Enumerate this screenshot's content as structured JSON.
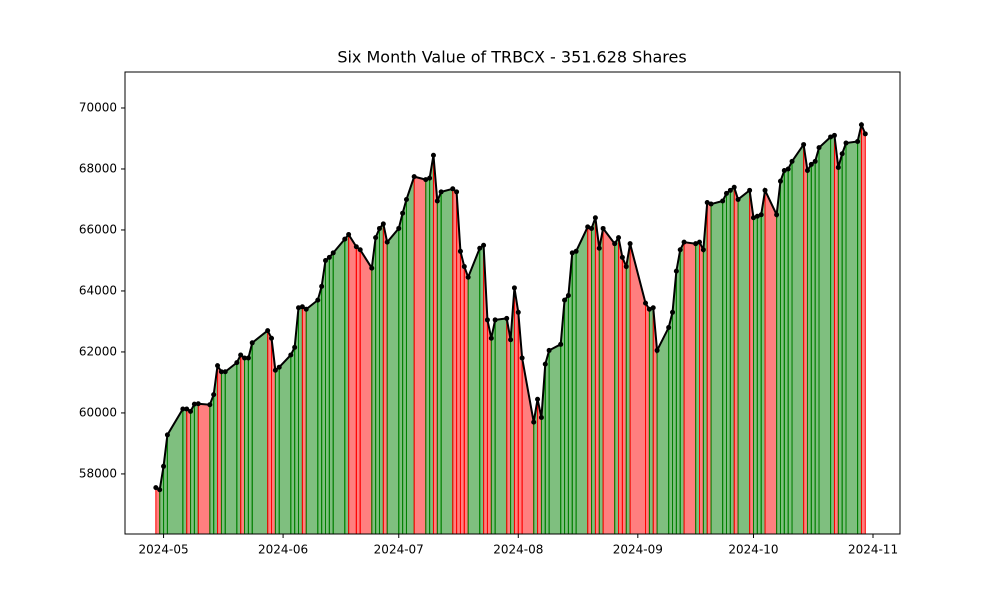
{
  "chart_data": {
    "type": "line",
    "title": "Six Month Value of TRBCX - 351.628 Shares",
    "x": [
      "2024-04-29",
      "2024-04-30",
      "2024-05-01",
      "2024-05-02",
      "2024-05-06",
      "2024-05-07",
      "2024-05-08",
      "2024-05-09",
      "2024-05-10",
      "2024-05-13",
      "2024-05-14",
      "2024-05-15",
      "2024-05-16",
      "2024-05-17",
      "2024-05-20",
      "2024-05-21",
      "2024-05-22",
      "2024-05-23",
      "2024-05-24",
      "2024-05-28",
      "2024-05-29",
      "2024-05-30",
      "2024-05-31",
      "2024-06-03",
      "2024-06-04",
      "2024-06-05",
      "2024-06-06",
      "2024-06-07",
      "2024-06-10",
      "2024-06-11",
      "2024-06-12",
      "2024-06-13",
      "2024-06-14",
      "2024-06-17",
      "2024-06-18",
      "2024-06-20",
      "2024-06-21",
      "2024-06-24",
      "2024-06-25",
      "2024-06-26",
      "2024-06-27",
      "2024-06-28",
      "2024-07-01",
      "2024-07-02",
      "2024-07-03",
      "2024-07-05",
      "2024-07-08",
      "2024-07-09",
      "2024-07-10",
      "2024-07-11",
      "2024-07-12",
      "2024-07-15",
      "2024-07-16",
      "2024-07-17",
      "2024-07-18",
      "2024-07-19",
      "2024-07-22",
      "2024-07-23",
      "2024-07-24",
      "2024-07-25",
      "2024-07-26",
      "2024-07-29",
      "2024-07-30",
      "2024-07-31",
      "2024-08-01",
      "2024-08-02",
      "2024-08-05",
      "2024-08-06",
      "2024-08-07",
      "2024-08-08",
      "2024-08-09",
      "2024-08-12",
      "2024-08-13",
      "2024-08-14",
      "2024-08-15",
      "2024-08-16",
      "2024-08-19",
      "2024-08-20",
      "2024-08-21",
      "2024-08-22",
      "2024-08-23",
      "2024-08-26",
      "2024-08-27",
      "2024-08-28",
      "2024-08-29",
      "2024-08-30",
      "2024-09-03",
      "2024-09-04",
      "2024-09-05",
      "2024-09-06",
      "2024-09-09",
      "2024-09-10",
      "2024-09-11",
      "2024-09-12",
      "2024-09-13",
      "2024-09-16",
      "2024-09-17",
      "2024-09-18",
      "2024-09-19",
      "2024-09-20",
      "2024-09-23",
      "2024-09-24",
      "2024-09-25",
      "2024-09-26",
      "2024-09-27",
      "2024-09-30",
      "2024-10-01",
      "2024-10-02",
      "2024-10-03",
      "2024-10-04",
      "2024-10-07",
      "2024-10-08",
      "2024-10-09",
      "2024-10-10",
      "2024-10-11",
      "2024-10-14",
      "2024-10-15",
      "2024-10-16",
      "2024-10-17",
      "2024-10-18",
      "2024-10-21",
      "2024-10-22",
      "2024-10-23",
      "2024-10-24",
      "2024-10-25",
      "2024-10-28",
      "2024-10-29",
      "2024-10-30"
    ],
    "values": [
      57550,
      57480,
      58250,
      59280,
      60130,
      60130,
      60050,
      60290,
      60300,
      60270,
      60600,
      61550,
      61350,
      61350,
      61650,
      61900,
      61800,
      61800,
      62300,
      62700,
      62450,
      61400,
      61500,
      61900,
      62150,
      63450,
      63480,
      63400,
      63700,
      64150,
      65000,
      65100,
      65250,
      65700,
      65850,
      65450,
      65350,
      64750,
      65750,
      66050,
      66200,
      65600,
      66050,
      66550,
      67000,
      67750,
      67650,
      67700,
      68450,
      66950,
      67250,
      67350,
      67250,
      65300,
      64800,
      64450,
      65400,
      65500,
      63050,
      62450,
      63050,
      63100,
      62400,
      64100,
      63300,
      61800,
      59700,
      60450,
      59850,
      61600,
      62050,
      62250,
      63700,
      63850,
      65250,
      65300,
      66100,
      66050,
      66400,
      65400,
      66050,
      65550,
      65750,
      65100,
      64800,
      65550,
      63600,
      63400,
      63450,
      62050,
      62800,
      63300,
      64650,
      65350,
      65600,
      65550,
      65600,
      65350,
      66900,
      66850,
      66950,
      67200,
      67300,
      67400,
      67000,
      67300,
      66400,
      66450,
      66500,
      67300,
      66500,
      67600,
      67950,
      68000,
      68250,
      68800,
      67950,
      68150,
      68250,
      68700,
      69050,
      69100,
      68050,
      68500,
      68850,
      68900,
      69450,
      69150
    ],
    "xlim": [
      "2024-04-21",
      "2024-11-08"
    ],
    "xticks": [
      {
        "value": "2024-05-01",
        "label": "2024-05"
      },
      {
        "value": "2024-06-01",
        "label": "2024-06"
      },
      {
        "value": "2024-07-01",
        "label": "2024-07"
      },
      {
        "value": "2024-08-01",
        "label": "2024-08"
      },
      {
        "value": "2024-09-01",
        "label": "2024-09"
      },
      {
        "value": "2024-10-01",
        "label": "2024-10"
      },
      {
        "value": "2024-11-01",
        "label": "2024-11"
      }
    ],
    "ylim": [
      56030,
      71180
    ],
    "yticks": [
      58000,
      60000,
      62000,
      64000,
      66000,
      68000,
      70000
    ],
    "line_color": "#000000",
    "up_color": "#008000",
    "down_color": "#ff0000",
    "grid": false
  }
}
